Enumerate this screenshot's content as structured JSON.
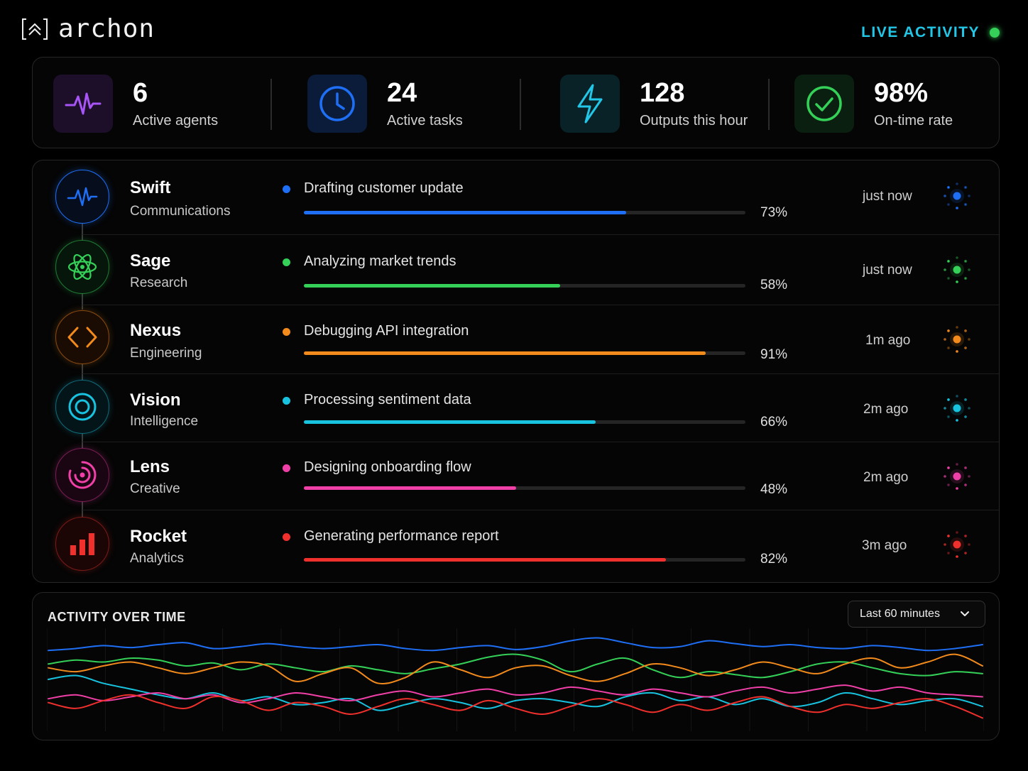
{
  "brand": {
    "name": "archon"
  },
  "live": {
    "label": "LIVE ACTIVITY",
    "color": "#34d058"
  },
  "stats": [
    {
      "value": "6",
      "label": "Active agents",
      "icon": "pulse-icon",
      "color": "#a855f7"
    },
    {
      "value": "24",
      "label": "Active tasks",
      "icon": "clock-icon",
      "color": "#1e6ff5"
    },
    {
      "value": "128",
      "label": "Outputs this hour",
      "icon": "lightning-icon",
      "color": "#22c7e8"
    },
    {
      "value": "98%",
      "label": "On-time rate",
      "icon": "check-circle-icon",
      "color": "#34d058"
    }
  ],
  "agents": [
    {
      "name": "Swift",
      "dept": "Communications",
      "task": "Drafting customer update",
      "progress": 0.73,
      "pct": "73%",
      "time": "just now",
      "color": "#1e6ff5",
      "icon": "pulse-icon"
    },
    {
      "name": "Sage",
      "dept": "Research",
      "task": "Analyzing market trends",
      "progress": 0.58,
      "pct": "58%",
      "time": "just now",
      "color": "#34d058",
      "icon": "atom-icon"
    },
    {
      "name": "Nexus",
      "dept": "Engineering",
      "task": "Debugging API integration",
      "progress": 0.91,
      "pct": "91%",
      "time": "1m ago",
      "color": "#f28a1c",
      "icon": "code-icon"
    },
    {
      "name": "Vision",
      "dept": "Intelligence",
      "task": "Processing sentiment data",
      "progress": 0.66,
      "pct": "66%",
      "time": "2m ago",
      "color": "#18c3e0",
      "icon": "target-icon"
    },
    {
      "name": "Lens",
      "dept": "Creative",
      "task": "Designing onboarding flow",
      "progress": 0.48,
      "pct": "48%",
      "time": "2m ago",
      "color": "#f040a8",
      "icon": "spiral-icon"
    },
    {
      "name": "Rocket",
      "dept": "Analytics",
      "task": "Generating performance report",
      "progress": 0.82,
      "pct": "82%",
      "time": "3m ago",
      "color": "#f0302c",
      "icon": "bar-chart-icon"
    }
  ],
  "activity": {
    "title": "ACTIVITY OVER TIME",
    "range": {
      "selected": "Last 60 minutes"
    }
  },
  "chart_data": {
    "type": "line",
    "title": "ACTIVITY OVER TIME",
    "xlabel": "",
    "ylabel": "",
    "grid": true,
    "series": [
      {
        "color": "#1e6ff5",
        "values": [
          0.8,
          0.82,
          0.85,
          0.83,
          0.86,
          0.88,
          0.82,
          0.84,
          0.87,
          0.84,
          0.82,
          0.84,
          0.86,
          0.82,
          0.8,
          0.83,
          0.85,
          0.81,
          0.84,
          0.9,
          0.93,
          0.88,
          0.83,
          0.84,
          0.9,
          0.87,
          0.84,
          0.86,
          0.83,
          0.82,
          0.85,
          0.83,
          0.8,
          0.82,
          0.86
        ]
      },
      {
        "color": "#34d058",
        "values": [
          0.66,
          0.7,
          0.68,
          0.72,
          0.7,
          0.64,
          0.67,
          0.6,
          0.66,
          0.62,
          0.58,
          0.64,
          0.6,
          0.56,
          0.61,
          0.66,
          0.73,
          0.76,
          0.7,
          0.58,
          0.66,
          0.72,
          0.6,
          0.52,
          0.58,
          0.55,
          0.52,
          0.58,
          0.66,
          0.68,
          0.62,
          0.56,
          0.54,
          0.58,
          0.56
        ]
      },
      {
        "color": "#f28a1c",
        "values": [
          0.62,
          0.58,
          0.64,
          0.68,
          0.62,
          0.56,
          0.62,
          0.68,
          0.64,
          0.48,
          0.56,
          0.62,
          0.46,
          0.52,
          0.68,
          0.6,
          0.52,
          0.62,
          0.64,
          0.54,
          0.48,
          0.56,
          0.66,
          0.62,
          0.54,
          0.6,
          0.68,
          0.62,
          0.56,
          0.66,
          0.72,
          0.62,
          0.68,
          0.76,
          0.64
        ]
      },
      {
        "color": "#18c3e0",
        "values": [
          0.5,
          0.54,
          0.46,
          0.4,
          0.34,
          0.3,
          0.36,
          0.28,
          0.32,
          0.24,
          0.26,
          0.3,
          0.18,
          0.24,
          0.3,
          0.26,
          0.2,
          0.28,
          0.3,
          0.26,
          0.22,
          0.32,
          0.36,
          0.28,
          0.32,
          0.24,
          0.3,
          0.22,
          0.26,
          0.36,
          0.3,
          0.24,
          0.28,
          0.3,
          0.22
        ]
      },
      {
        "color": "#f040a8",
        "values": [
          0.3,
          0.34,
          0.28,
          0.32,
          0.36,
          0.3,
          0.34,
          0.26,
          0.3,
          0.36,
          0.32,
          0.28,
          0.34,
          0.38,
          0.32,
          0.36,
          0.4,
          0.34,
          0.36,
          0.42,
          0.38,
          0.34,
          0.4,
          0.36,
          0.32,
          0.38,
          0.42,
          0.36,
          0.4,
          0.44,
          0.38,
          0.42,
          0.36,
          0.34,
          0.32
        ]
      },
      {
        "color": "#f0302c",
        "values": [
          0.26,
          0.2,
          0.28,
          0.34,
          0.26,
          0.2,
          0.32,
          0.28,
          0.18,
          0.26,
          0.22,
          0.14,
          0.22,
          0.3,
          0.24,
          0.18,
          0.28,
          0.2,
          0.14,
          0.22,
          0.3,
          0.24,
          0.16,
          0.24,
          0.18,
          0.26,
          0.32,
          0.22,
          0.16,
          0.24,
          0.2,
          0.26,
          0.3,
          0.22,
          0.1
        ]
      }
    ]
  }
}
